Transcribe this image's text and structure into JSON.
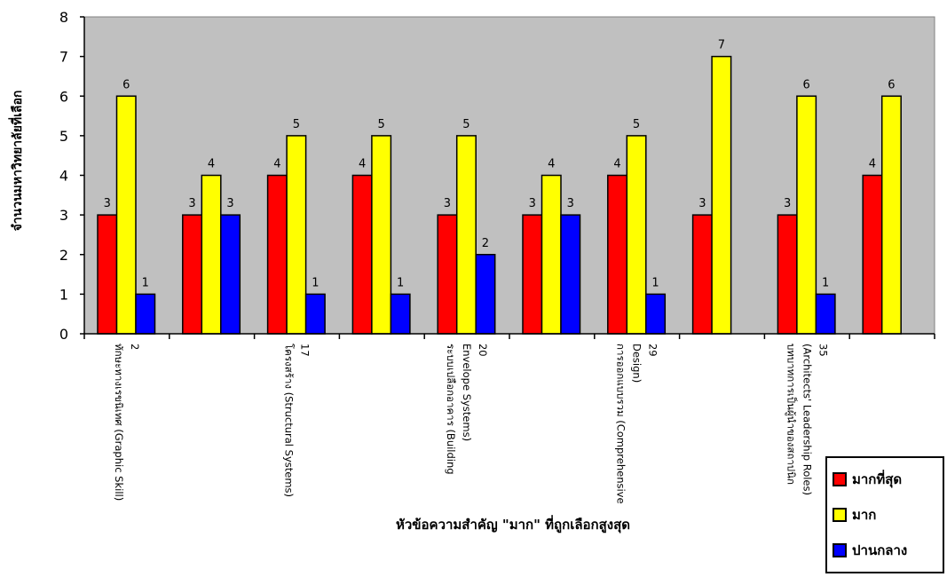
{
  "chart_data": {
    "type": "bar",
    "title": "",
    "xlabel": "หัวข้อความสำคัญ \"มาก\" ที่ถูกเลือกสูงสุด",
    "ylabel": "จำนวนมหาวิทยาลัยที่เลือก",
    "ylim": [
      0,
      8
    ],
    "yticks": [
      "0",
      "1",
      "2",
      "3",
      "4",
      "5",
      "6",
      "7",
      "8"
    ],
    "grid": false,
    "legend_position": "bottom-right",
    "categories": [
      {
        "lines": [
          "ทักษะทางเรขนิเทศ (Graphic Skill)",
          "2"
        ]
      },
      {
        "lines": []
      },
      {
        "lines": [
          "โครงสร้าง (Structural Systems)",
          "17"
        ]
      },
      {
        "lines": []
      },
      {
        "lines": [
          "ระบบเปลือกอาคาร (Building",
          "Envelope Systems)",
          "20"
        ]
      },
      {
        "lines": []
      },
      {
        "lines": [
          "การออกแบบรวม (Comprehensive",
          "Design)",
          "29"
        ]
      },
      {
        "lines": []
      },
      {
        "lines": [
          "บทบาทการเป็นผู้นำของสถาปนิก",
          "(Architects' Leadership Roles)",
          "35"
        ]
      },
      {
        "lines": []
      }
    ],
    "series": [
      {
        "name": "มากที่สุด",
        "color": "#ff0000",
        "values": [
          3,
          3,
          4,
          4,
          3,
          3,
          4,
          3,
          3,
          4
        ]
      },
      {
        "name": "มาก",
        "color": "#ffff00",
        "values": [
          6,
          4,
          5,
          5,
          5,
          4,
          5,
          7,
          6,
          6
        ]
      },
      {
        "name": "ปานกลาง",
        "color": "#0000ff",
        "values": [
          1,
          3,
          1,
          1,
          2,
          3,
          1,
          null,
          1,
          null
        ]
      }
    ],
    "plot_background": "#c0c0c0"
  }
}
